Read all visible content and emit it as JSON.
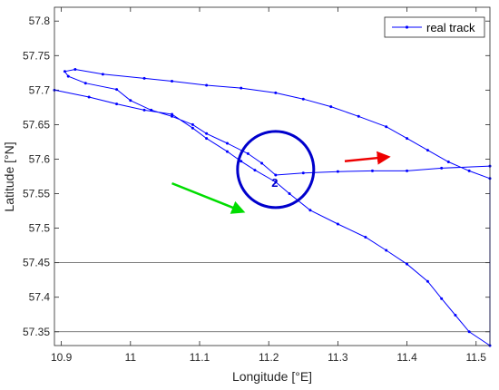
{
  "chart_data": {
    "type": "line",
    "xlabel": "Longitude [°E]",
    "ylabel": "Latitude [°N]",
    "xlim": [
      10.89,
      11.52
    ],
    "ylim": [
      57.33,
      57.82
    ],
    "xticks": [
      10.9,
      11,
      11.1,
      11.2,
      11.3,
      11.4,
      11.5
    ],
    "xtick_labels": [
      "10.9",
      "11",
      "11.1",
      "11.2",
      "11.3",
      "11.4",
      "11.5"
    ],
    "yticks": [
      57.35,
      57.4,
      57.45,
      57.5,
      57.55,
      57.6,
      57.65,
      57.7,
      57.75,
      57.8
    ],
    "ytick_labels": [
      "57.35",
      "57.4",
      "57.45",
      "57.5",
      "57.55",
      "57.6",
      "57.65",
      "57.7",
      "57.75",
      "57.8"
    ],
    "grid": false,
    "reference_lines_y": [
      57.35,
      57.45
    ],
    "legend": {
      "position": "top-right",
      "entries": [
        "real track"
      ]
    },
    "series": [
      {
        "name": "real track",
        "color": "#0000ff",
        "x": [
          10.89,
          10.94,
          10.98,
          11.02,
          11.06,
          11.09,
          11.11,
          11.14,
          11.16,
          11.18,
          11.21,
          11.23,
          11.26,
          11.3,
          11.34,
          11.37,
          11.4,
          11.43,
          11.45,
          11.47,
          11.49,
          11.52,
          11.52,
          11.49,
          11.46,
          11.43,
          11.4,
          11.37,
          11.33,
          11.29,
          11.25,
          11.21,
          11.16,
          11.11,
          11.06,
          11.02,
          10.96,
          10.92,
          10.905,
          10.91,
          10.935,
          10.98,
          11.0,
          11.03,
          11.06,
          11.09,
          11.11,
          11.14,
          11.17,
          11.19,
          11.21,
          11.25,
          11.3,
          11.35,
          11.4,
          11.45,
          11.52
        ],
        "y": [
          57.7,
          57.69,
          57.68,
          57.671,
          57.665,
          57.645,
          57.63,
          57.611,
          57.597,
          57.584,
          57.567,
          57.55,
          57.526,
          57.506,
          57.487,
          57.468,
          57.448,
          57.423,
          57.398,
          57.374,
          57.35,
          57.33,
          57.572,
          57.583,
          57.596,
          57.613,
          57.63,
          57.647,
          57.662,
          57.676,
          57.687,
          57.696,
          57.703,
          57.707,
          57.713,
          57.717,
          57.723,
          57.73,
          57.727,
          57.72,
          57.71,
          57.701,
          57.685,
          57.671,
          57.662,
          57.65,
          57.637,
          57.623,
          57.608,
          57.594,
          57.577,
          57.58,
          57.582,
          57.583,
          57.583,
          57.587,
          57.59
        ]
      }
    ],
    "annotations": [
      {
        "text": "2",
        "x": 11.21,
        "y": 57.585,
        "shape": "circle",
        "color": "#0000cc"
      },
      {
        "text": "",
        "shape": "arrow",
        "color": "#00dd00",
        "from": [
          11.06,
          57.565
        ],
        "to": [
          11.16,
          57.525
        ]
      },
      {
        "text": "",
        "shape": "arrow",
        "color": "#ee0000",
        "from": [
          11.31,
          57.597
        ],
        "to": [
          11.37,
          57.603
        ]
      }
    ]
  }
}
